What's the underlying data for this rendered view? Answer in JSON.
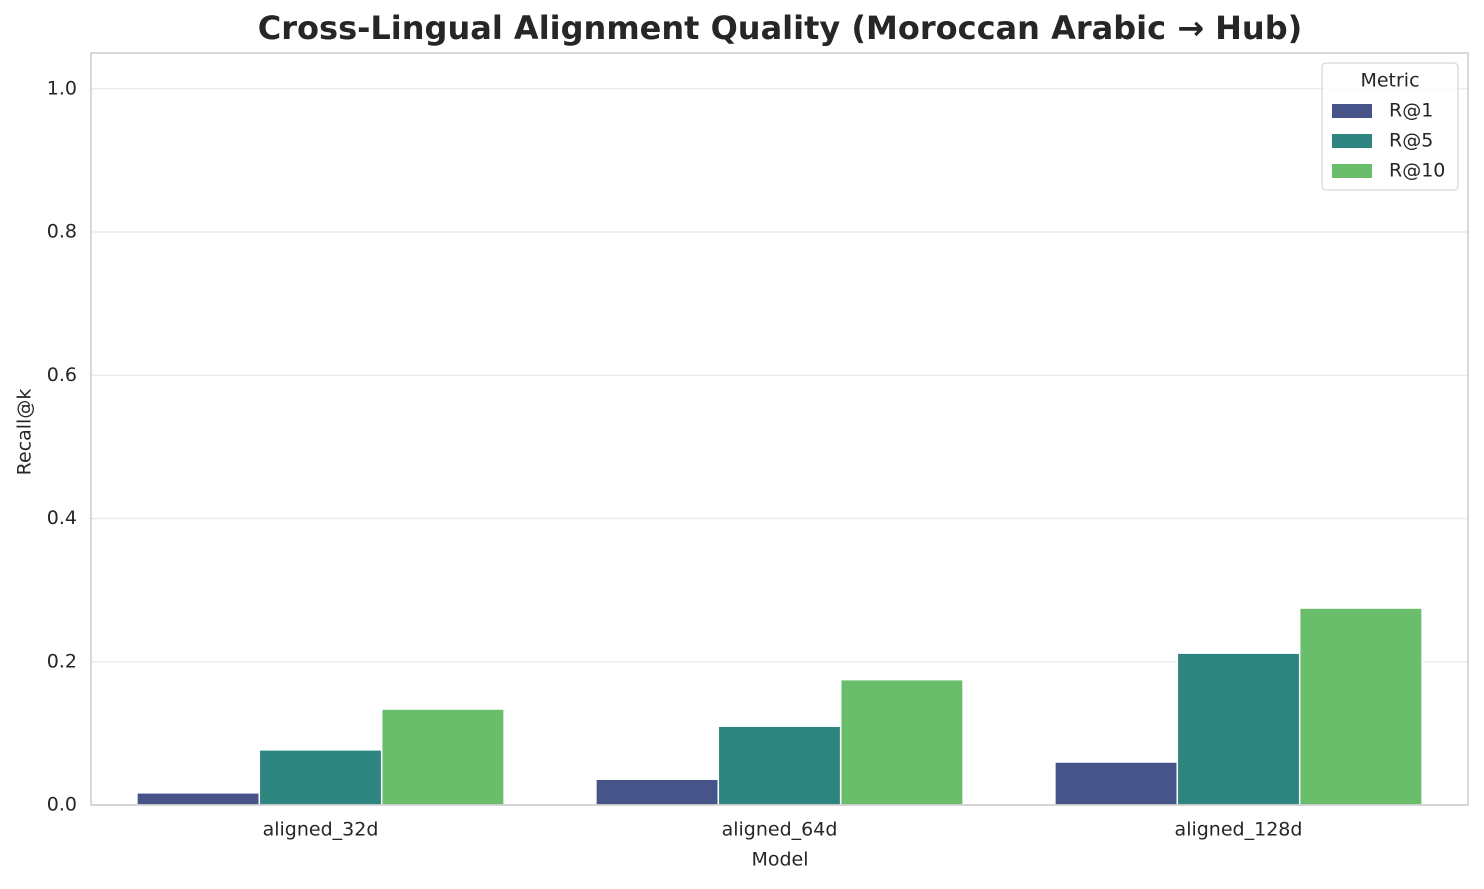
{
  "chart_data": {
    "type": "bar",
    "title": "Cross-Lingual Alignment Quality (Moroccan Arabic → Hub)",
    "x_label": "Model",
    "y_label": "Recall@k",
    "categories": [
      "aligned_32d",
      "aligned_64d",
      "aligned_128d"
    ],
    "series": [
      {
        "name": "R@1",
        "color": "#46548a",
        "values": [
          0.017,
          0.036,
          0.06
        ]
      },
      {
        "name": "R@5",
        "color": "#2e8580",
        "values": [
          0.077,
          0.11,
          0.212
        ]
      },
      {
        "name": "R@10",
        "color": "#6abd6b",
        "values": [
          0.134,
          0.175,
          0.275
        ]
      }
    ],
    "legend_title": "Metric",
    "legend_position": "upper right",
    "ylim": [
      0,
      1.05
    ],
    "yticks": [
      {
        "value": 0,
        "label": "0.0"
      },
      0.2,
      0.4,
      0.6,
      0.8,
      {
        "value": 1,
        "label": "1.0"
      }
    ],
    "grid": true
  }
}
